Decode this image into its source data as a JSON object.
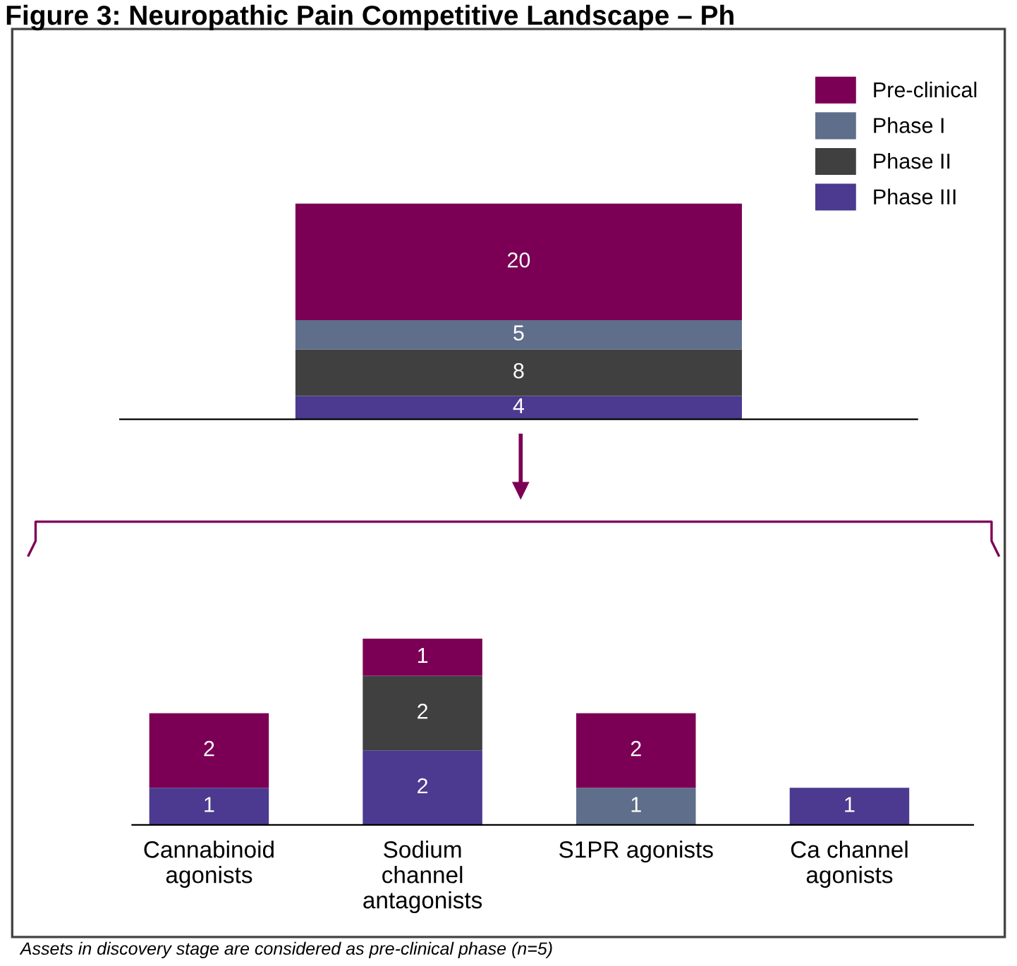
{
  "chart_data": [
    {
      "type": "bar",
      "stacked": true,
      "title": "Figure 3: Neuropathic Pain Competitive Landscape – Ph",
      "categories": [
        null
      ],
      "data_labels": true,
      "legend": "top right",
      "grid": false,
      "series": [
        {
          "name": "Phase III",
          "color": "#4b3a8f",
          "values": [
            4
          ]
        },
        {
          "name": "Phase II",
          "color": "#404040",
          "values": [
            8
          ]
        },
        {
          "name": "Phase I",
          "color": "#5f6e8a",
          "values": [
            5
          ]
        },
        {
          "name": "Pre-clinical",
          "color": "#7b0055",
          "values": [
            20
          ]
        }
      ]
    },
    {
      "type": "bar",
      "stacked": true,
      "categories": [
        "Cannabinoid\nagonists",
        "Sodium\nchannel\nantagonists",
        "S1PR agonists",
        "Ca channel\nagonists"
      ],
      "data_labels": true,
      "grid": false,
      "legend": false,
      "annotations": [
        "Assets in discovery stage are considered as pre-clinical phase (n=5)"
      ],
      "series": [
        {
          "color": "#4b3a8f",
          "values": [
            1,
            2,
            null,
            1
          ]
        },
        {
          "color": "#404040",
          "values": [
            null,
            2,
            null,
            null
          ]
        },
        {
          "color": "#5f6e8a",
          "values": [
            null,
            null,
            1,
            null
          ]
        },
        {
          "color": "#7b0055",
          "values": [
            2,
            1,
            2,
            null
          ]
        }
      ]
    }
  ]
}
